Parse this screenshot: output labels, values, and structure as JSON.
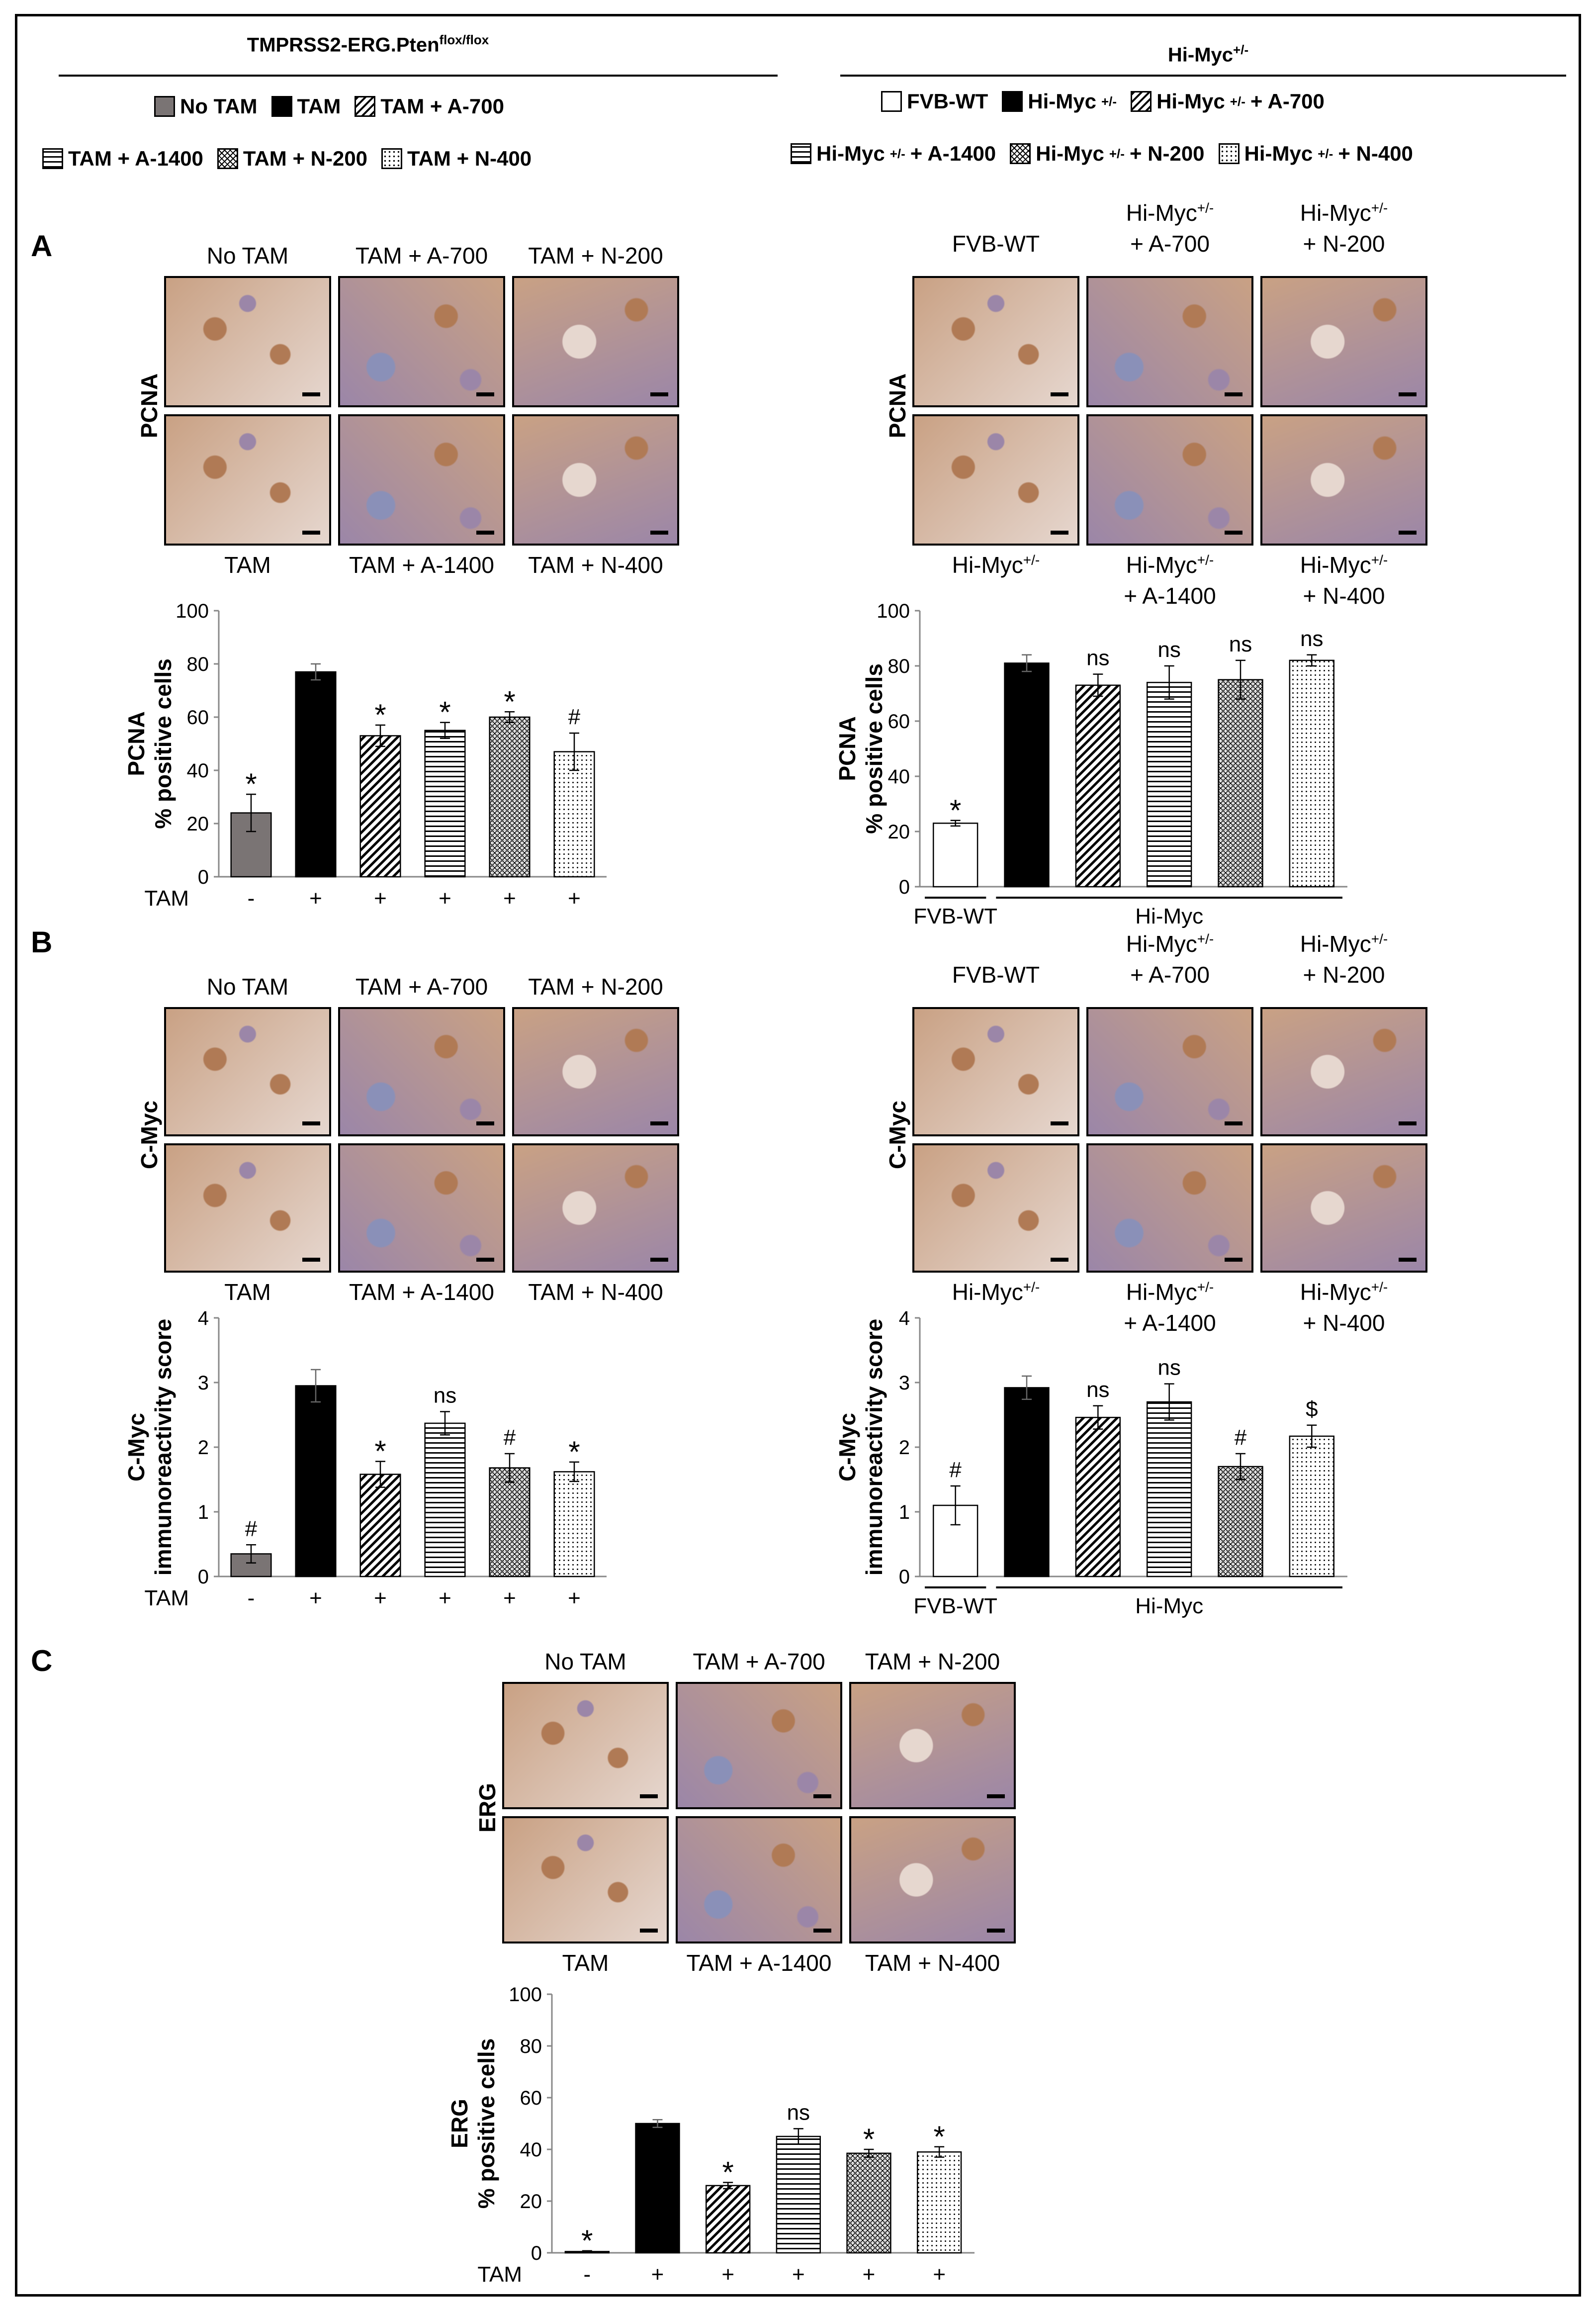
{
  "header": {
    "left_title": "TMPRSS2-ERG.Pten",
    "left_title_sup": "flox/flox",
    "right_title": "Hi-Myc",
    "right_title_sup": "+/-"
  },
  "legend_left": {
    "row1": [
      {
        "label": "No TAM",
        "pattern": "gray"
      },
      {
        "label": "TAM",
        "pattern": "black"
      },
      {
        "label": "TAM + A-700",
        "pattern": "diag"
      }
    ],
    "row2": [
      {
        "label": "TAM + A-1400",
        "pattern": "hstripe"
      },
      {
        "label": "TAM + N-200",
        "pattern": "checker"
      },
      {
        "label": "TAM + N-400",
        "pattern": "dots"
      }
    ]
  },
  "legend_right": {
    "row1": [
      {
        "label": "FVB-WT",
        "pattern": "white"
      },
      {
        "label": "Hi-Myc",
        "sup": "+/-",
        "pattern": "black"
      },
      {
        "label": "Hi-Myc",
        "sup": "+/-",
        "suffix": " + A-700",
        "pattern": "diag"
      }
    ],
    "row2": [
      {
        "label": "Hi-Myc",
        "sup": "+/-",
        "suffix": " + A-1400",
        "pattern": "hstripe"
      },
      {
        "label": "Hi-Myc",
        "sup": "+/-",
        "suffix": " + N-200",
        "pattern": "checker"
      },
      {
        "label": "Hi-Myc",
        "sup": "+/-",
        "suffix": " + N-400",
        "pattern": "dots"
      }
    ]
  },
  "panels": {
    "A": {
      "letter": "A",
      "row_label": "PCNA",
      "left_top_captions": [
        "No TAM",
        "TAM + A-700",
        "TAM + N-200"
      ],
      "left_bottom_captions": [
        "TAM",
        "TAM + A-1400",
        "TAM + N-400"
      ],
      "right_top_captions": [
        [
          "FVB-WT"
        ],
        [
          "Hi-Myc+/-",
          "+ A-700"
        ],
        [
          "Hi-Myc+/-",
          "+ N-200"
        ]
      ],
      "right_bottom_captions": [
        [
          "Hi-Myc+/-"
        ],
        [
          "Hi-Myc+/-",
          "+ A-1400"
        ],
        [
          "Hi-Myc+/-",
          "+ N-400"
        ]
      ]
    },
    "B": {
      "letter": "B",
      "row_label": "C-Myc",
      "left_top_captions": [
        "No TAM",
        "TAM + A-700",
        "TAM + N-200"
      ],
      "left_bottom_captions": [
        "TAM",
        "TAM + A-1400",
        "TAM + N-400"
      ],
      "right_top_captions": [
        [
          "FVB-WT"
        ],
        [
          "Hi-Myc+/-",
          "+ A-700"
        ],
        [
          "Hi-Myc+/-",
          "+ N-200"
        ]
      ],
      "right_bottom_captions": [
        [
          "Hi-Myc+/-"
        ],
        [
          "Hi-Myc+/-",
          "+ A-1400"
        ],
        [
          "Hi-Myc+/-",
          "+ N-400"
        ]
      ]
    },
    "C": {
      "letter": "C",
      "row_label": "ERG",
      "top_captions": [
        "No TAM",
        "TAM + A-700",
        "TAM + N-200"
      ],
      "bottom_captions": [
        "TAM",
        "TAM + A-1400",
        "TAM + N-400"
      ]
    }
  },
  "tissue_colors": {
    "brown": "#b07a55",
    "blue": "#8a90b8",
    "pale": "#e6d7cf",
    "purple": "#9b86a8",
    "tan": "#c9a184"
  },
  "chart_data": [
    {
      "id": "A-left",
      "type": "bar",
      "ylabel_lines": [
        "PCNA",
        "% positive cells"
      ],
      "ylim": [
        0,
        100
      ],
      "yticks": [
        0,
        20,
        40,
        60,
        80,
        100
      ],
      "values": [
        24,
        77,
        53,
        55,
        60,
        47
      ],
      "errors": [
        7,
        3,
        4,
        3,
        2,
        7
      ],
      "annotations": [
        "*",
        "",
        "*",
        "*",
        "*",
        "#"
      ],
      "patterns": [
        "gray",
        "black",
        "diag",
        "hstripe",
        "checker",
        "dots"
      ],
      "x_row_label": "TAM",
      "x_row": [
        "-",
        "+",
        "+",
        "+",
        "+",
        "+"
      ]
    },
    {
      "id": "A-right",
      "type": "bar",
      "ylabel_lines": [
        "PCNA",
        "% positive cells"
      ],
      "ylim": [
        0,
        100
      ],
      "yticks": [
        0,
        20,
        40,
        60,
        80,
        100
      ],
      "values": [
        23,
        81,
        73,
        74,
        75,
        82
      ],
      "errors": [
        1,
        3,
        4,
        6,
        7,
        2
      ],
      "annotations": [
        "*",
        "",
        "ns",
        "ns",
        "ns",
        "ns"
      ],
      "patterns": [
        "white",
        "black",
        "diag",
        "hstripe",
        "checker",
        "dots"
      ],
      "groups": [
        {
          "label": "FVB-WT",
          "from": 0,
          "to": 0
        },
        {
          "label": "Hi-Myc",
          "from": 1,
          "to": 5
        }
      ]
    },
    {
      "id": "B-left",
      "type": "bar",
      "ylabel_lines": [
        "C-Myc",
        "immunoreactivity score"
      ],
      "ylim": [
        0,
        4
      ],
      "yticks": [
        0,
        1,
        2,
        3,
        4
      ],
      "values": [
        0.35,
        2.95,
        1.58,
        2.37,
        1.68,
        1.62
      ],
      "errors": [
        0.14,
        0.25,
        0.2,
        0.18,
        0.22,
        0.15
      ],
      "annotations": [
        "#",
        "",
        "*",
        "ns",
        "#",
        "*"
      ],
      "patterns": [
        "gray",
        "black",
        "diag",
        "hstripe",
        "checker",
        "dots"
      ],
      "x_row_label": "TAM",
      "x_row": [
        "-",
        "+",
        "+",
        "+",
        "+",
        "+"
      ]
    },
    {
      "id": "B-right",
      "type": "bar",
      "ylabel_lines": [
        "C-Myc",
        "immunoreactivity score"
      ],
      "ylim": [
        0,
        4
      ],
      "yticks": [
        0,
        1,
        2,
        3,
        4
      ],
      "values": [
        1.1,
        2.92,
        2.46,
        2.7,
        1.7,
        2.17
      ],
      "errors": [
        0.3,
        0.18,
        0.18,
        0.28,
        0.2,
        0.17
      ],
      "annotations": [
        "#",
        "",
        "ns",
        "ns",
        "#",
        "$"
      ],
      "patterns": [
        "white",
        "black",
        "diag",
        "hstripe",
        "checker",
        "dots"
      ],
      "groups": [
        {
          "label": "FVB-WT",
          "from": 0,
          "to": 0
        },
        {
          "label": "Hi-Myc",
          "from": 1,
          "to": 5
        }
      ]
    },
    {
      "id": "C",
      "type": "bar",
      "ylabel_lines": [
        "ERG",
        "% positive cells"
      ],
      "ylim": [
        0,
        100
      ],
      "yticks": [
        0,
        20,
        40,
        60,
        80,
        100
      ],
      "values": [
        0.5,
        50,
        26,
        45,
        38.5,
        39
      ],
      "errors": [
        0.3,
        1.5,
        1.2,
        3,
        1.5,
        2
      ],
      "annotations": [
        "*",
        "",
        "*",
        "ns",
        "*",
        "*"
      ],
      "patterns": [
        "gray",
        "black",
        "diag",
        "hstripe",
        "checker",
        "dots"
      ],
      "x_row_label": "TAM",
      "x_row": [
        "-",
        "+",
        "+",
        "+",
        "+",
        "+"
      ]
    }
  ]
}
